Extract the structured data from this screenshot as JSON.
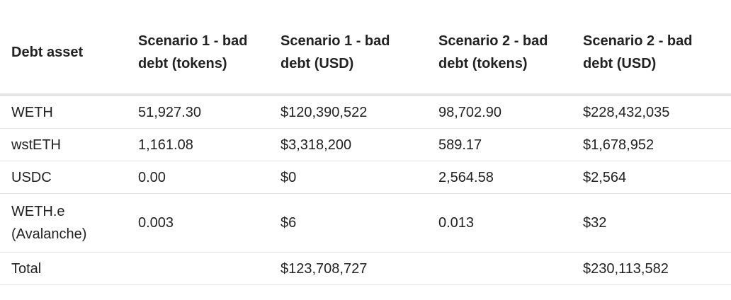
{
  "table": {
    "headers": [
      "Debt asset",
      "Scenario 1 - bad debt (tokens)",
      "Scenario 1 - bad debt (USD)",
      "Scenario 2 - bad debt (tokens)",
      "Scenario 2 - bad debt (USD)"
    ],
    "rows": [
      [
        "WETH",
        "51,927.30",
        "$120,390,522",
        "98,702.90",
        "$228,432,035"
      ],
      [
        "wstETH",
        "1,161.08",
        "$3,318,200",
        "589.17",
        "$1,678,952"
      ],
      [
        "USDC",
        "0.00",
        "$0",
        "2,564.58",
        "$2,564"
      ],
      [
        "WETH.e (Avalanche)",
        "0.003",
        "$6",
        "0.013",
        "$32"
      ],
      [
        "Total",
        "",
        "$123,708,727",
        "",
        "$230,113,582"
      ]
    ]
  }
}
